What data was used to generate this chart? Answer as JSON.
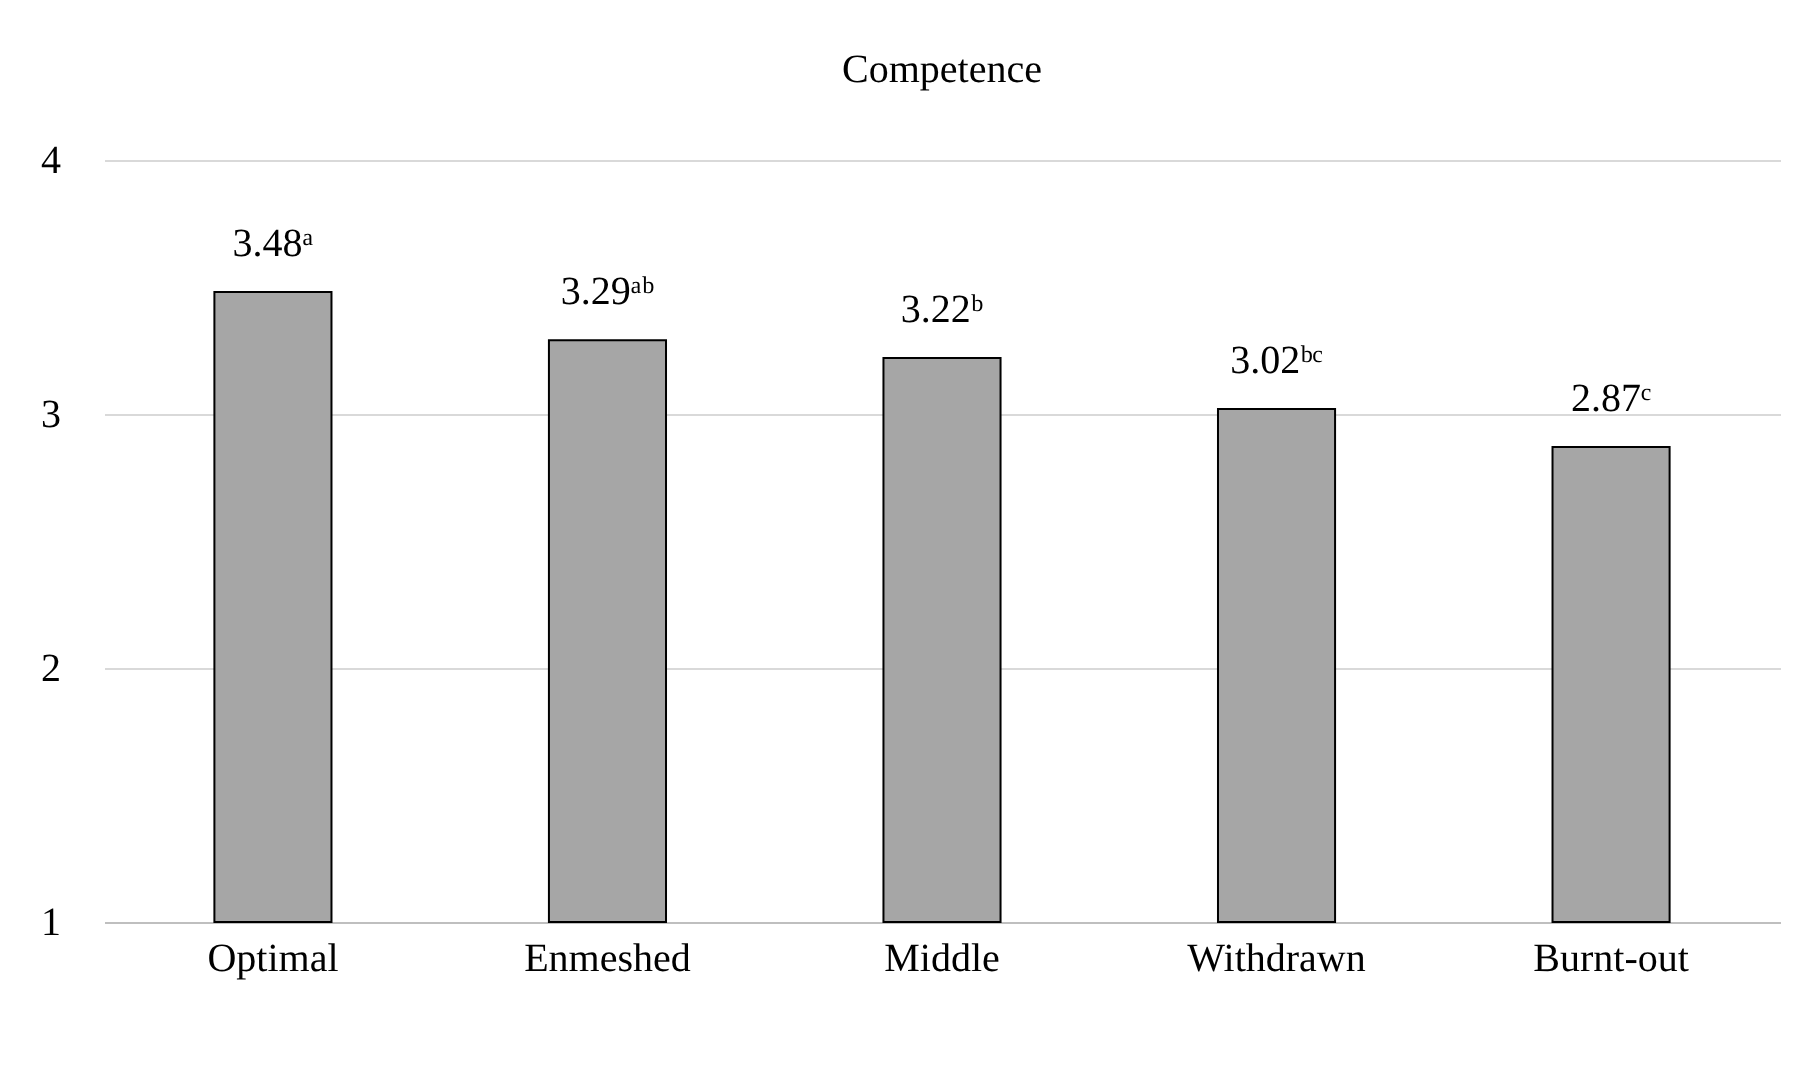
{
  "chart_data": {
    "type": "bar",
    "title": "Competence",
    "categories": [
      "Optimal",
      "Enmeshed",
      "Middle",
      "Withdrawn",
      "Burnt-out"
    ],
    "values": [
      3.48,
      3.29,
      3.22,
      3.02,
      2.87
    ],
    "value_labels": [
      "3.48ᵃ",
      "3.29ᵃᵇ",
      "3.22ᵇ",
      "3.02ᵇᶜ",
      "2.87ᶜ"
    ],
    "color": "#a6a6a6",
    "ylim": [
      1,
      4
    ],
    "yticks": [
      1,
      2,
      3,
      4
    ],
    "grid": "y"
  }
}
